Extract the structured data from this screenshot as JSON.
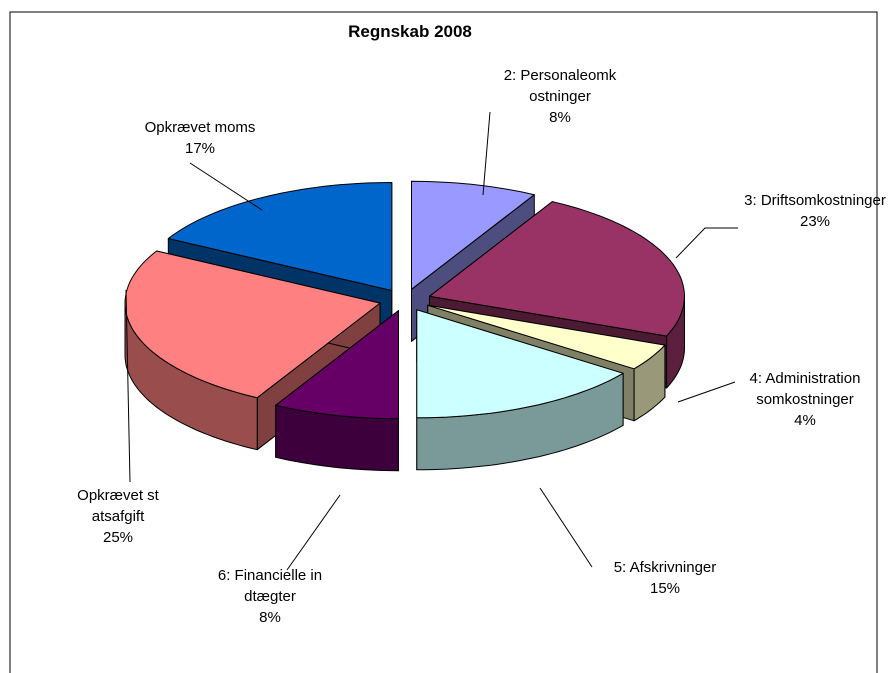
{
  "chart_data": {
    "type": "pie3d",
    "title": "Regnskab 2008",
    "categories": [
      "2: Personaleomkostninger",
      "3: Driftsomkostninger",
      "4: Administrationsomkostninger",
      "5: Afskrivninger",
      "6: Financielle indtægter",
      "Opkrævet statsafgift",
      "Opkrævet moms"
    ],
    "values": [
      8,
      23,
      4,
      15,
      8,
      25,
      17
    ],
    "value_labels": [
      "8%",
      "23%",
      "4%",
      "15%",
      "8%",
      "25%",
      "17%"
    ],
    "colors": [
      "#9999ff",
      "#993366",
      "#ffffcc",
      "#ccffff",
      "#660066",
      "#ff8080",
      "#0066cc"
    ]
  }
}
